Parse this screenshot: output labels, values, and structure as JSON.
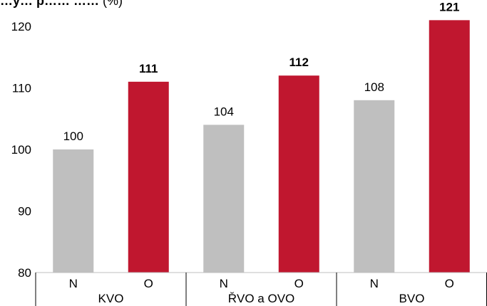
{
  "title": {
    "main": "…y… p…… ……",
    "unit": "(%)"
  },
  "chart_data": {
    "type": "bar",
    "ylim": [
      80,
      122
    ],
    "yticks": [
      80,
      90,
      100,
      110,
      120
    ],
    "groups": [
      {
        "label": "KVO",
        "bars": [
          {
            "label": "N",
            "value": 100,
            "color": "#bfbfbf",
            "bold": false
          },
          {
            "label": "O",
            "value": 111,
            "color": "#c0172f",
            "bold": true
          }
        ]
      },
      {
        "label": "ŘVO a OVO",
        "bars": [
          {
            "label": "N",
            "value": 104,
            "color": "#bfbfbf",
            "bold": false
          },
          {
            "label": "O",
            "value": 112,
            "color": "#c0172f",
            "bold": true
          }
        ]
      },
      {
        "label": "BVO",
        "bars": [
          {
            "label": "N",
            "value": 108,
            "color": "#bfbfbf",
            "bold": false
          },
          {
            "label": "O",
            "value": 121,
            "color": "#c0172f",
            "bold": true
          }
        ]
      }
    ],
    "grid": false,
    "legend": "none"
  }
}
